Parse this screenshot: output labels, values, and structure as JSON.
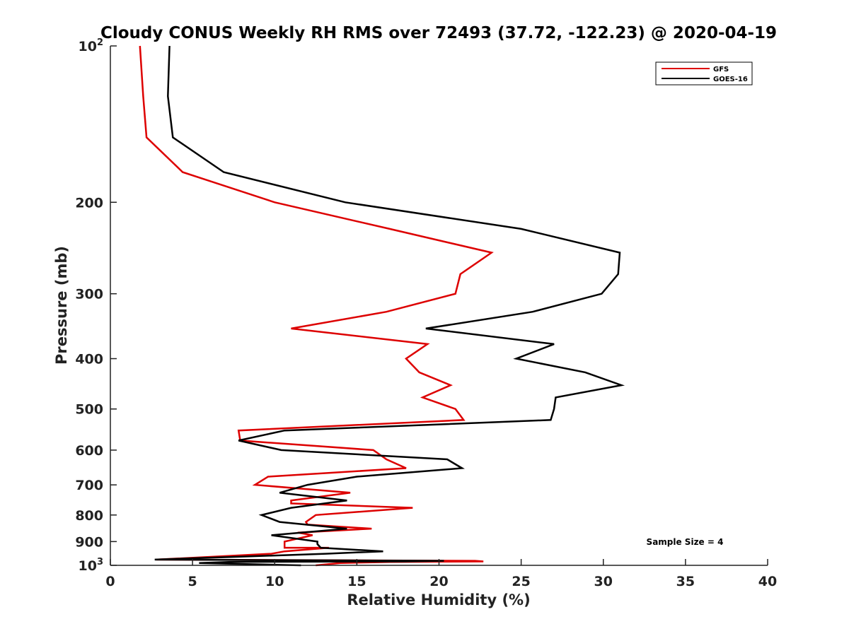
{
  "chart_data": {
    "type": "line",
    "title": "Cloudy CONUS Weekly RH RMS over 72493 (37.72, -122.23) @ 2020-04-19",
    "xlabel": "Relative Humidity (%)",
    "ylabel": "Pressure (mb)",
    "xlim": [
      0,
      40
    ],
    "ylim": [
      100,
      1000
    ],
    "y_scale": "log",
    "y_reversed": true,
    "grid": false,
    "legend_position": "top-right",
    "x_ticks": [
      "0",
      "5",
      "10",
      "15",
      "20",
      "25",
      "30",
      "35",
      "40"
    ],
    "y_ticks": [
      {
        "value": 100,
        "base": "10",
        "exp": "2"
      },
      {
        "value": 200,
        "label": "200"
      },
      {
        "value": 300,
        "label": "300"
      },
      {
        "value": 400,
        "label": "400"
      },
      {
        "value": 500,
        "label": "500"
      },
      {
        "value": 600,
        "label": "600"
      },
      {
        "value": 700,
        "label": "700"
      },
      {
        "value": 800,
        "label": "800"
      },
      {
        "value": 900,
        "label": "900"
      },
      {
        "value": 1000,
        "base": "10",
        "exp": "3"
      }
    ],
    "annotation": "Sample Size = 4",
    "series": [
      {
        "name": "GFS",
        "color": "#dd0000",
        "points": [
          [
            1.8,
            100
          ],
          [
            2.0,
            125
          ],
          [
            2.2,
            150
          ],
          [
            4.4,
            175
          ],
          [
            10.0,
            200
          ],
          [
            17.0,
            225
          ],
          [
            23.2,
            250
          ],
          [
            21.3,
            275
          ],
          [
            21.0,
            300
          ],
          [
            16.8,
            325
          ],
          [
            11.0,
            350
          ],
          [
            19.3,
            375
          ],
          [
            18.0,
            400
          ],
          [
            18.8,
            425
          ],
          [
            20.7,
            450
          ],
          [
            19.0,
            475
          ],
          [
            21.0,
            500
          ],
          [
            21.5,
            525
          ],
          [
            7.8,
            550
          ],
          [
            7.9,
            575
          ],
          [
            16.0,
            600
          ],
          [
            16.8,
            625
          ],
          [
            18.0,
            650
          ],
          [
            9.6,
            675
          ],
          [
            8.8,
            700
          ],
          [
            14.6,
            725
          ],
          [
            11.0,
            750
          ],
          [
            11.0,
            760
          ],
          [
            18.4,
            775
          ],
          [
            12.5,
            800
          ],
          [
            11.9,
            825
          ],
          [
            12.0,
            835
          ],
          [
            15.9,
            850
          ],
          [
            11.4,
            865
          ],
          [
            12.3,
            875
          ],
          [
            10.6,
            900
          ],
          [
            10.6,
            925
          ],
          [
            13.3,
            925
          ],
          [
            10.6,
            940
          ],
          [
            9.8,
            950
          ],
          [
            2.8,
            975
          ],
          [
            22.2,
            980
          ],
          [
            22.7,
            983
          ],
          [
            17.0,
            985
          ],
          [
            14.0,
            990
          ],
          [
            12.5,
            1000
          ]
        ]
      },
      {
        "name": "GOES-16",
        "color": "#000000",
        "points": [
          [
            3.6,
            100
          ],
          [
            3.5,
            125
          ],
          [
            3.8,
            150
          ],
          [
            6.9,
            175
          ],
          [
            14.3,
            200
          ],
          [
            25.0,
            225
          ],
          [
            31.0,
            250
          ],
          [
            30.9,
            275
          ],
          [
            29.9,
            300
          ],
          [
            25.7,
            325
          ],
          [
            19.2,
            350
          ],
          [
            27.0,
            375
          ],
          [
            24.7,
            400
          ],
          [
            28.9,
            425
          ],
          [
            31.1,
            450
          ],
          [
            27.1,
            475
          ],
          [
            27.0,
            500
          ],
          [
            26.8,
            525
          ],
          [
            10.6,
            550
          ],
          [
            7.8,
            575
          ],
          [
            10.4,
            600
          ],
          [
            20.5,
            625
          ],
          [
            21.4,
            650
          ],
          [
            15.0,
            675
          ],
          [
            12.0,
            700
          ],
          [
            10.3,
            725
          ],
          [
            14.4,
            750
          ],
          [
            11.0,
            775
          ],
          [
            9.2,
            800
          ],
          [
            10.3,
            825
          ],
          [
            14.4,
            850
          ],
          [
            9.8,
            875
          ],
          [
            12.6,
            900
          ],
          [
            12.6,
            910
          ],
          [
            12.8,
            925
          ],
          [
            16.6,
            940
          ],
          [
            13.1,
            950
          ],
          [
            2.7,
            975
          ],
          [
            20.3,
            980
          ],
          [
            17.9,
            983
          ],
          [
            7.2,
            985
          ],
          [
            5.4,
            990
          ],
          [
            11.6,
            1000
          ]
        ]
      }
    ]
  }
}
